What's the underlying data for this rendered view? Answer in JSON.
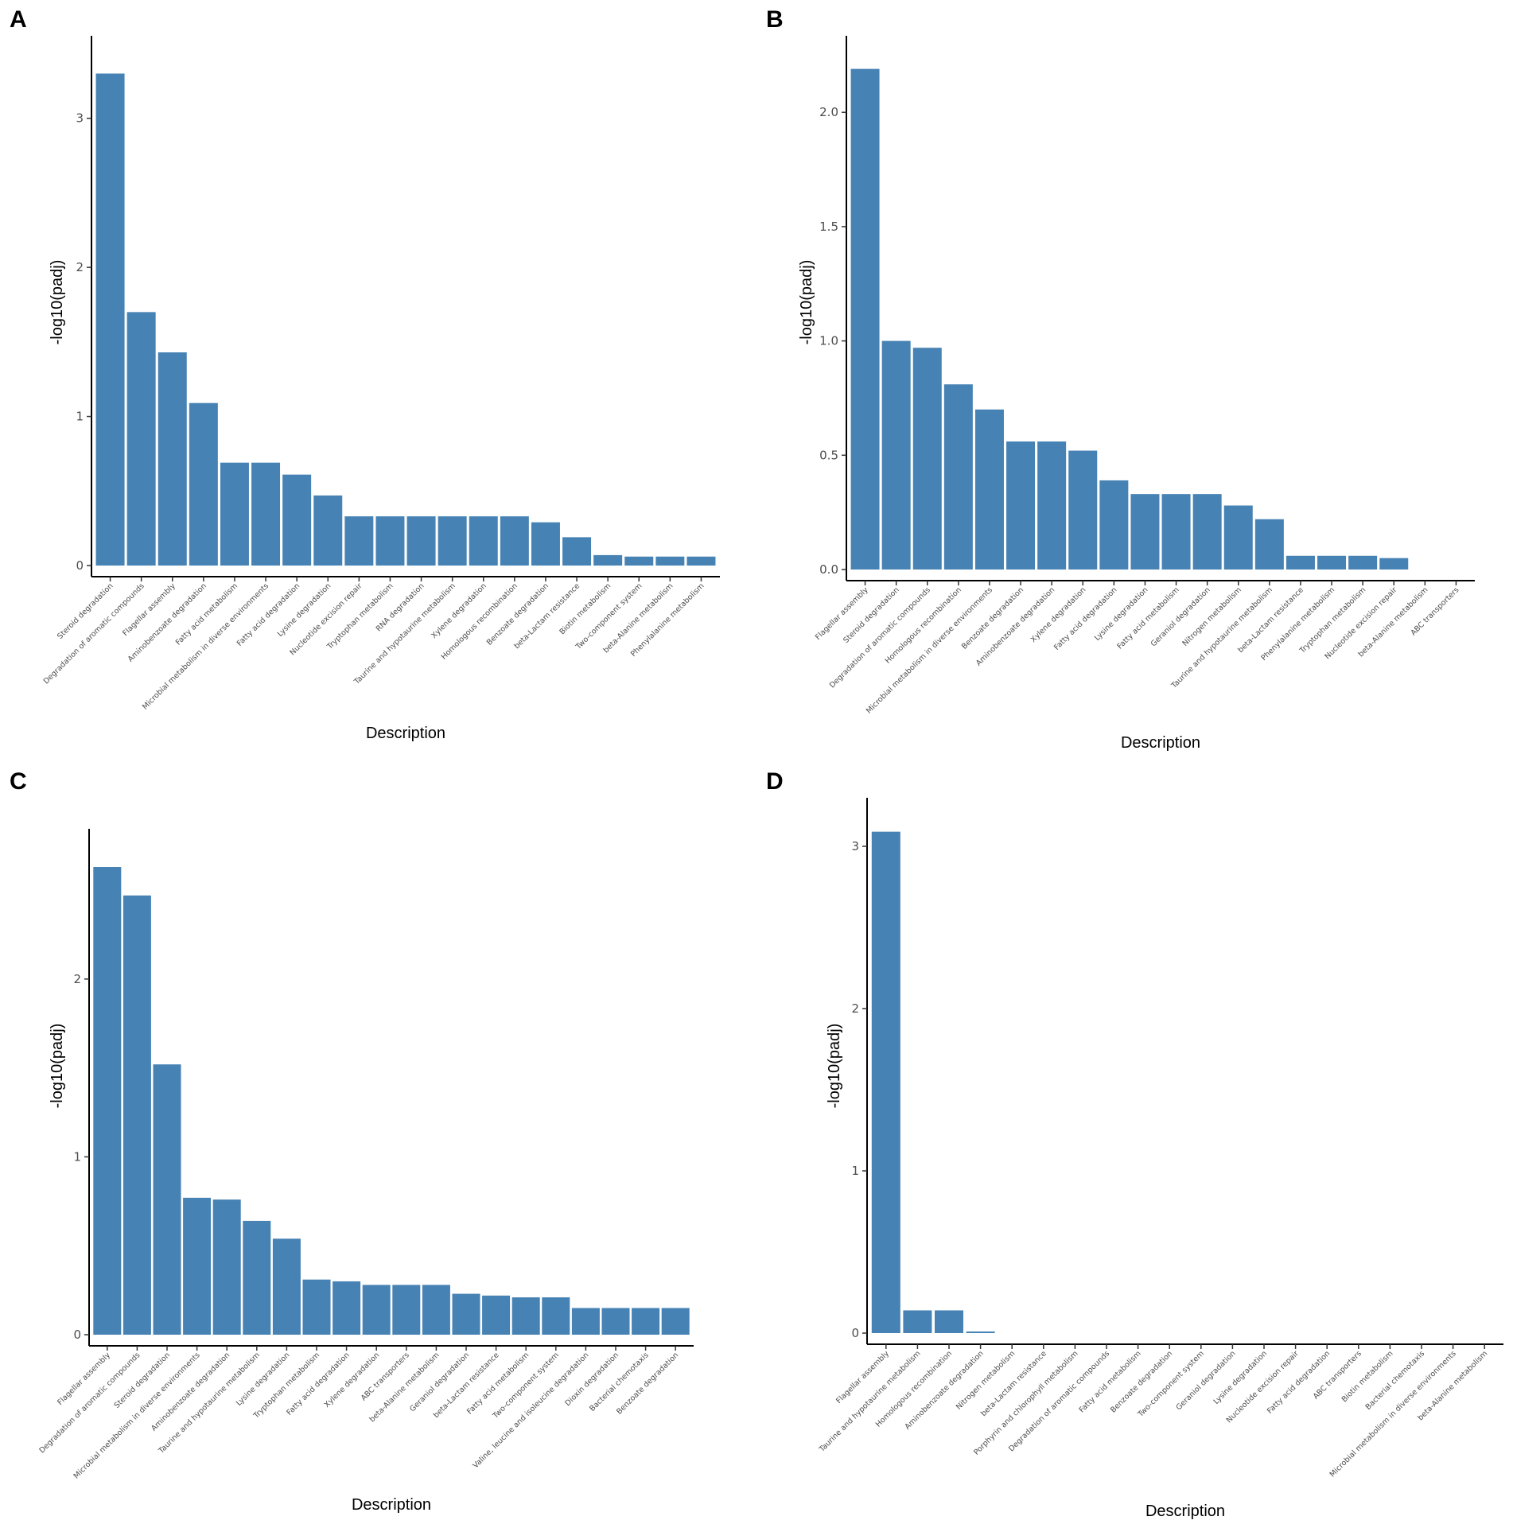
{
  "chart_data": [
    {
      "panel": "A",
      "type": "bar",
      "xlabel": "Description",
      "ylabel": "-log10(padj)",
      "ylim": [
        0,
        3.5
      ],
      "yticks": [
        0,
        1,
        2,
        3
      ],
      "categories": [
        "Steroid degradation",
        "Degradation of aromatic compounds",
        "Flagellar assembly",
        "Aminobenzoate degradation",
        "Fatty acid metabolism",
        "Microbial metabolism in diverse environments",
        "Fatty acid degradation",
        "Lysine degradation",
        "Nucleotide excision repair",
        "Tryptophan metabolism",
        "RNA degradation",
        "Taurine and hypotaurine metabolism",
        "Xylene degradation",
        "Homologous recombination",
        "Benzoate degradation",
        "beta-Lactam resistance",
        "Biotin metabolism",
        "Two-component system",
        "beta-Alanine metabolism",
        "Phenylalanine metabolism"
      ],
      "values": [
        3.3,
        1.7,
        1.43,
        1.09,
        0.69,
        0.69,
        0.61,
        0.47,
        0.33,
        0.33,
        0.33,
        0.33,
        0.33,
        0.33,
        0.29,
        0.19,
        0.07,
        0.06,
        0.06,
        0.06
      ]
    },
    {
      "panel": "B",
      "type": "bar",
      "xlabel": "Description",
      "ylabel": "-log10(padj)",
      "ylim": [
        0,
        2.3
      ],
      "yticks": [
        0.0,
        0.5,
        1.0,
        1.5,
        2.0
      ],
      "categories": [
        "Flagellar assembly",
        "Steroid degradation",
        "Degradation of aromatic compounds",
        "Homologous recombination",
        "Microbial metabolism in diverse environments",
        "Benzoate degradation",
        "Aminobenzoate degradation",
        "Xylene degradation",
        "Fatty acid degradation",
        "Lysine degradation",
        "Fatty acid metabolism",
        "Geraniol degradation",
        "Nitrogen metabolism",
        "Taurine and hypotaurine metabolism",
        "beta-Lactam resistance",
        "Phenylalanine metabolism",
        "Tryptophan metabolism",
        "Nucleotide excision repair",
        "beta-Alanine metabolism",
        "ABC transporters"
      ],
      "values": [
        2.19,
        1.0,
        0.97,
        0.81,
        0.7,
        0.56,
        0.56,
        0.52,
        0.39,
        0.33,
        0.33,
        0.33,
        0.28,
        0.22,
        0.06,
        0.06,
        0.06,
        0.05,
        0.0,
        0.0
      ]
    },
    {
      "panel": "C",
      "type": "bar",
      "xlabel": "Description",
      "ylabel": "-log10(padj)",
      "ylim": [
        0,
        2.8
      ],
      "yticks": [
        0,
        1,
        2
      ],
      "categories": [
        "Flagellar assembly",
        "Degradation of aromatic compounds",
        "Steroid degradation",
        "Microbial metabolism in diverse environments",
        "Aminobenzoate degradation",
        "Taurine and hypotaurine metabolism",
        "Lysine degradation",
        "Tryptophan metabolism",
        "Fatty acid degradation",
        "Xylene degradation",
        "ABC transporters",
        "beta-Alanine metabolism",
        "Geraniol degradation",
        "beta-Lactam resistance",
        "Fatty acid metabolism",
        "Two-component system",
        "Valine, leucine and isoleucine degradation",
        "Dioxin degradation",
        "Bacterial chemotaxis",
        "Benzoate degradation"
      ],
      "values": [
        2.63,
        2.47,
        1.52,
        0.77,
        0.76,
        0.64,
        0.54,
        0.31,
        0.3,
        0.28,
        0.28,
        0.28,
        0.23,
        0.22,
        0.21,
        0.21,
        0.15,
        0.15,
        0.15,
        0.15
      ]
    },
    {
      "panel": "D",
      "type": "bar",
      "xlabel": "Description",
      "ylabel": "-log10(padj)",
      "ylim": [
        0,
        3.25
      ],
      "yticks": [
        0,
        1,
        2,
        3
      ],
      "categories": [
        "Flagellar assembly",
        "Taurine and hypotaurine metabolism",
        "Homologous recombination",
        "Aminobenzoate degradation",
        "Nitrogen metabolism",
        "beta-Lactam resistance",
        "Porphyrin and chlorophyll metabolism",
        "Degradation of aromatic compounds",
        "Fatty acid metabolism",
        "Benzoate degradation",
        "Two-component system",
        "Geraniol degradation",
        "Lysine degradation",
        "Nucleotide excision repair",
        "Fatty acid degradation",
        "ABC transporters",
        "Biotin metabolism",
        "Bacterial chemotaxis",
        "Microbial metabolism in diverse environments",
        "beta-Alanine metabolism"
      ],
      "values": [
        3.09,
        0.14,
        0.14,
        0.01,
        0,
        0,
        0,
        0,
        0,
        0,
        0,
        0,
        0,
        0,
        0,
        0,
        0,
        0,
        0,
        0
      ]
    }
  ]
}
